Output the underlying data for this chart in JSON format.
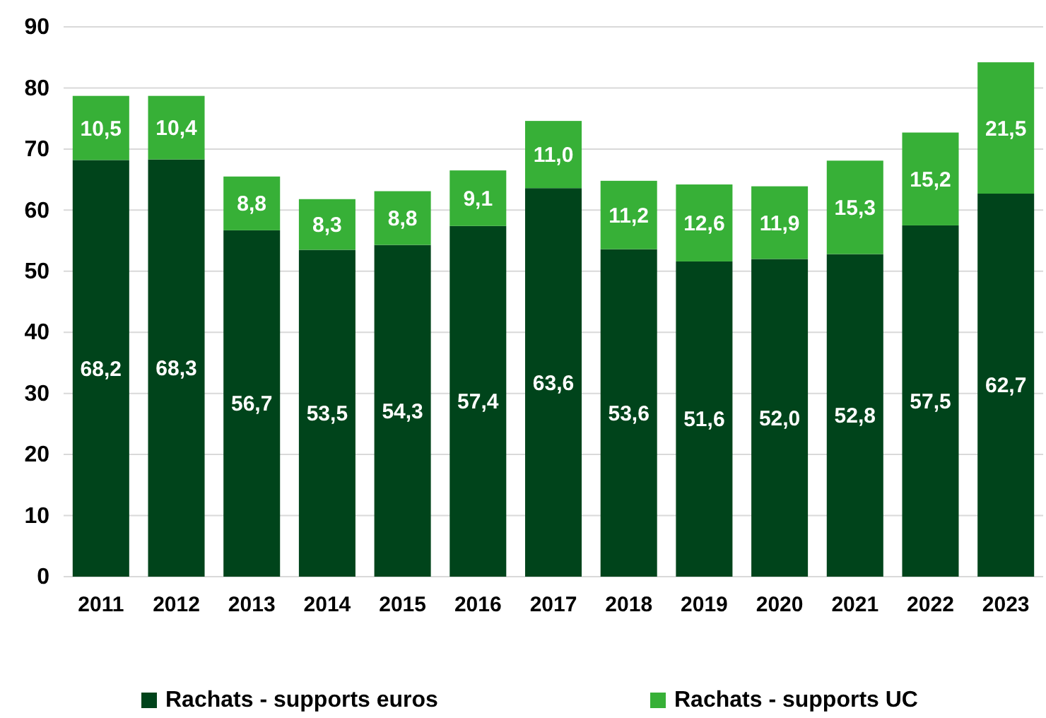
{
  "chart_data": {
    "type": "bar",
    "stacked": true,
    "categories": [
      "2011",
      "2012",
      "2013",
      "2014",
      "2015",
      "2016",
      "2017",
      "2018",
      "2019",
      "2020",
      "2021",
      "2022",
      "2023"
    ],
    "series": [
      {
        "name": "Rachats - supports euros",
        "color": "#00441b",
        "values": [
          68.2,
          68.3,
          56.7,
          53.5,
          54.3,
          57.4,
          63.6,
          53.6,
          51.6,
          52.0,
          52.8,
          57.5,
          62.7
        ],
        "value_labels": [
          "68,2",
          "68,3",
          "56,7",
          "53,5",
          "54,3",
          "57,4",
          "63,6",
          "53,6",
          "51,6",
          "52,0",
          "52,8",
          "57,5",
          "62,7"
        ]
      },
      {
        "name": "Rachats - supports UC",
        "color": "#37b037",
        "values": [
          10.5,
          10.4,
          8.8,
          8.3,
          8.8,
          9.1,
          11.0,
          11.2,
          12.6,
          11.9,
          15.3,
          15.2,
          21.5
        ],
        "value_labels": [
          "10,5",
          "10,4",
          "8,8",
          "8,3",
          "8,8",
          "9,1",
          "11,0",
          "11,2",
          "12,6",
          "11,9",
          "15,3",
          "15,2",
          "21,5"
        ]
      }
    ],
    "ylim": [
      0,
      90
    ],
    "yticks": [
      0,
      10,
      20,
      30,
      40,
      50,
      60,
      70,
      80,
      90
    ],
    "grid": "y",
    "legend": "bottom"
  }
}
